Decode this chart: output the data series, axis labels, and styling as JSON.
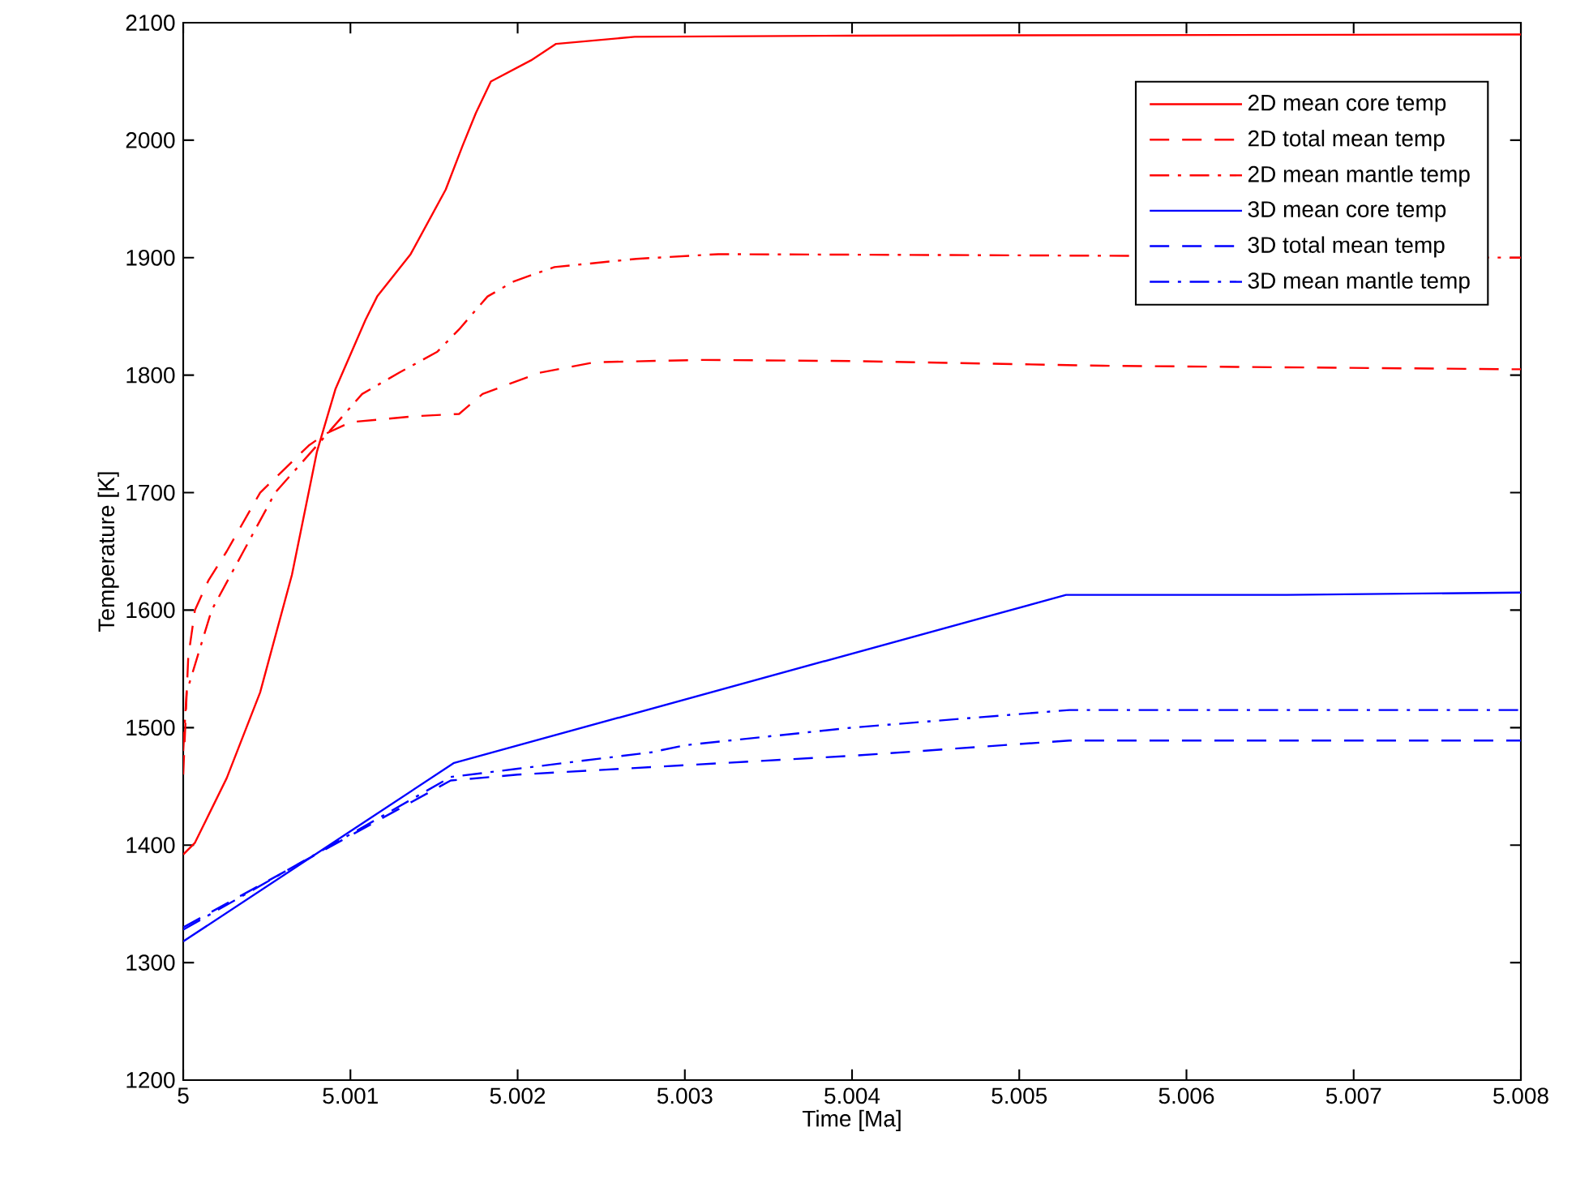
{
  "chart_data": {
    "type": "line",
    "xlabel": "Time [Ma]",
    "ylabel": "Temperature [K]",
    "xlim": [
      5,
      5.008
    ],
    "ylim": [
      1200,
      2100
    ],
    "xticks": [
      5,
      5.001,
      5.002,
      5.003,
      5.004,
      5.005,
      5.006,
      5.007,
      5.008
    ],
    "yticks": [
      1200,
      1300,
      1400,
      1500,
      1600,
      1700,
      1800,
      1900,
      2000,
      2100
    ],
    "grid": false,
    "legend": "top right",
    "marker": "none",
    "series": [
      {
        "name": "2D mean core temp",
        "color": "#ff0000",
        "line_style": "solid",
        "x": [
          5,
          5.00007,
          5.00026,
          5.00046,
          5.00065,
          5.0008,
          5.00091,
          5.00109,
          5.00116,
          5.00136,
          5.00157,
          5.00167,
          5.00175,
          5.00184,
          5.00208,
          5.00223,
          5.0027,
          5.004,
          5.008
        ],
        "values": [
          1392,
          1402,
          1457,
          1530,
          1630,
          1735,
          1788,
          1847,
          1867,
          1903,
          1958,
          1995,
          2023,
          2050,
          2068,
          2082,
          2088,
          2089,
          2090
        ]
      },
      {
        "name": "2D total mean temp",
        "color": "#ff0000",
        "line_style": "dashed",
        "x": [
          5,
          5.00003,
          5.00007,
          5.00015,
          5.00026,
          5.00046,
          5.00075,
          5.00085,
          5.001,
          5.00138,
          5.00165,
          5.00179,
          5.00194,
          5.00213,
          5.00246,
          5.0031,
          5.004,
          5.0055,
          5.008
        ],
        "values": [
          1460,
          1560,
          1600,
          1625,
          1650,
          1700,
          1740,
          1750,
          1760,
          1765,
          1767,
          1784,
          1792,
          1802,
          1811,
          1813,
          1812,
          1808,
          1805
        ]
      },
      {
        "name": "2D mean mantle temp",
        "color": "#ff0000",
        "line_style": "dashdot",
        "x": [
          5,
          5.00002,
          5.00017,
          5.00036,
          5.00055,
          5.00083,
          5.00107,
          5.00129,
          5.00152,
          5.00165,
          5.00182,
          5.00198,
          5.00222,
          5.00271,
          5.0032,
          5.005,
          5.008
        ],
        "values": [
          1480,
          1530,
          1600,
          1650,
          1700,
          1745,
          1784,
          1802,
          1820,
          1839,
          1867,
          1880,
          1892,
          1899,
          1903,
          1902,
          1900
        ]
      },
      {
        "name": "3D mean core temp",
        "color": "#0000ff",
        "line_style": "solid",
        "x": [
          5,
          5.00162,
          5.00528,
          5.0066,
          5.008
        ],
        "values": [
          1318,
          1470,
          1613,
          1613,
          1615
        ]
      },
      {
        "name": "3D total mean temp",
        "color": "#0000ff",
        "line_style": "dashed",
        "x": [
          5,
          5.0016,
          5.002,
          5.003,
          5.004,
          5.0053,
          5.008
        ],
        "values": [
          1330,
          1455,
          1460,
          1468,
          1476,
          1489,
          1489
        ]
      },
      {
        "name": "3D mean mantle temp",
        "color": "#0000ff",
        "line_style": "dashdot",
        "x": [
          5,
          5.0016,
          5.002,
          5.0028,
          5.003,
          5.004,
          5.0053,
          5.008
        ],
        "values": [
          1328,
          1458,
          1465,
          1479,
          1485,
          1500,
          1515,
          1515
        ]
      }
    ]
  }
}
